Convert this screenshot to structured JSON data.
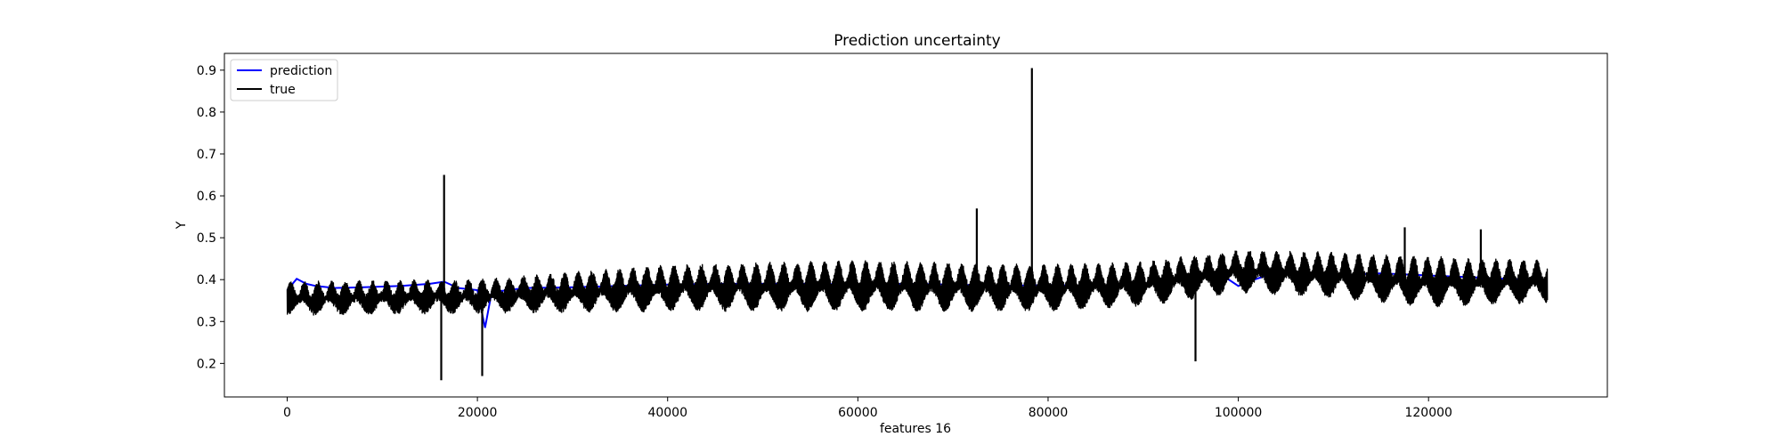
{
  "chart_data": {
    "type": "line",
    "title": "Prediction uncertainty",
    "xlabel": "features 16",
    "ylabel": "Y",
    "xlim": [
      -6600,
      138800
    ],
    "ylim": [
      0.12,
      0.94
    ],
    "xticks": [
      0,
      20000,
      40000,
      60000,
      80000,
      100000,
      120000
    ],
    "yticks": [
      0.2,
      0.3,
      0.4,
      0.5,
      0.6,
      0.7,
      0.8,
      0.9
    ],
    "grid": false,
    "legend_position": "upper-left",
    "x_range": [
      0,
      132500
    ],
    "series": [
      {
        "name": "prediction",
        "color": "#0000ff",
        "x": [
          0,
          1000,
          2000,
          3000,
          5000,
          8000,
          12000,
          15000,
          16500,
          18000,
          20000,
          20800,
          21500,
          25000,
          30000,
          35000,
          40000,
          45000,
          50000,
          55000,
          60000,
          65000,
          70000,
          75000,
          80000,
          85000,
          90000,
          93000,
          95000,
          97000,
          99000,
          100000,
          101000,
          103000,
          105000,
          110000,
          115000,
          120000,
          125000,
          130000,
          132500
        ],
        "values": [
          0.375,
          0.402,
          0.39,
          0.385,
          0.38,
          0.382,
          0.385,
          0.39,
          0.395,
          0.38,
          0.375,
          0.285,
          0.37,
          0.38,
          0.382,
          0.385,
          0.388,
          0.39,
          0.39,
          0.39,
          0.388,
          0.39,
          0.388,
          0.385,
          0.387,
          0.385,
          0.39,
          0.395,
          0.41,
          0.415,
          0.4,
          0.385,
          0.395,
          0.41,
          0.415,
          0.41,
          0.415,
          0.41,
          0.405,
          0.4,
          0.4
        ]
      },
      {
        "name": "true",
        "color": "#000000",
        "base": [
          [
            0,
            0.355
          ],
          [
            20000,
            0.36
          ],
          [
            40000,
            0.38
          ],
          [
            60000,
            0.385
          ],
          [
            80000,
            0.38
          ],
          [
            90000,
            0.39
          ],
          [
            100000,
            0.42
          ],
          [
            110000,
            0.41
          ],
          [
            120000,
            0.395
          ],
          [
            132500,
            0.395
          ]
        ],
        "amplitude": [
          [
            0,
            0.035
          ],
          [
            20000,
            0.035
          ],
          [
            40000,
            0.05
          ],
          [
            60000,
            0.055
          ],
          [
            80000,
            0.05
          ],
          [
            100000,
            0.045
          ],
          [
            120000,
            0.055
          ],
          [
            132500,
            0.045
          ]
        ],
        "daily_period": 1440,
        "spikes": [
          {
            "x": 16200,
            "y": 0.16
          },
          {
            "x": 16500,
            "y": 0.65
          },
          {
            "x": 20500,
            "y": 0.17
          },
          {
            "x": 72500,
            "y": 0.57
          },
          {
            "x": 78300,
            "y": 0.905
          },
          {
            "x": 95500,
            "y": 0.205
          },
          {
            "x": 117500,
            "y": 0.525
          },
          {
            "x": 125500,
            "y": 0.52
          }
        ]
      }
    ]
  }
}
